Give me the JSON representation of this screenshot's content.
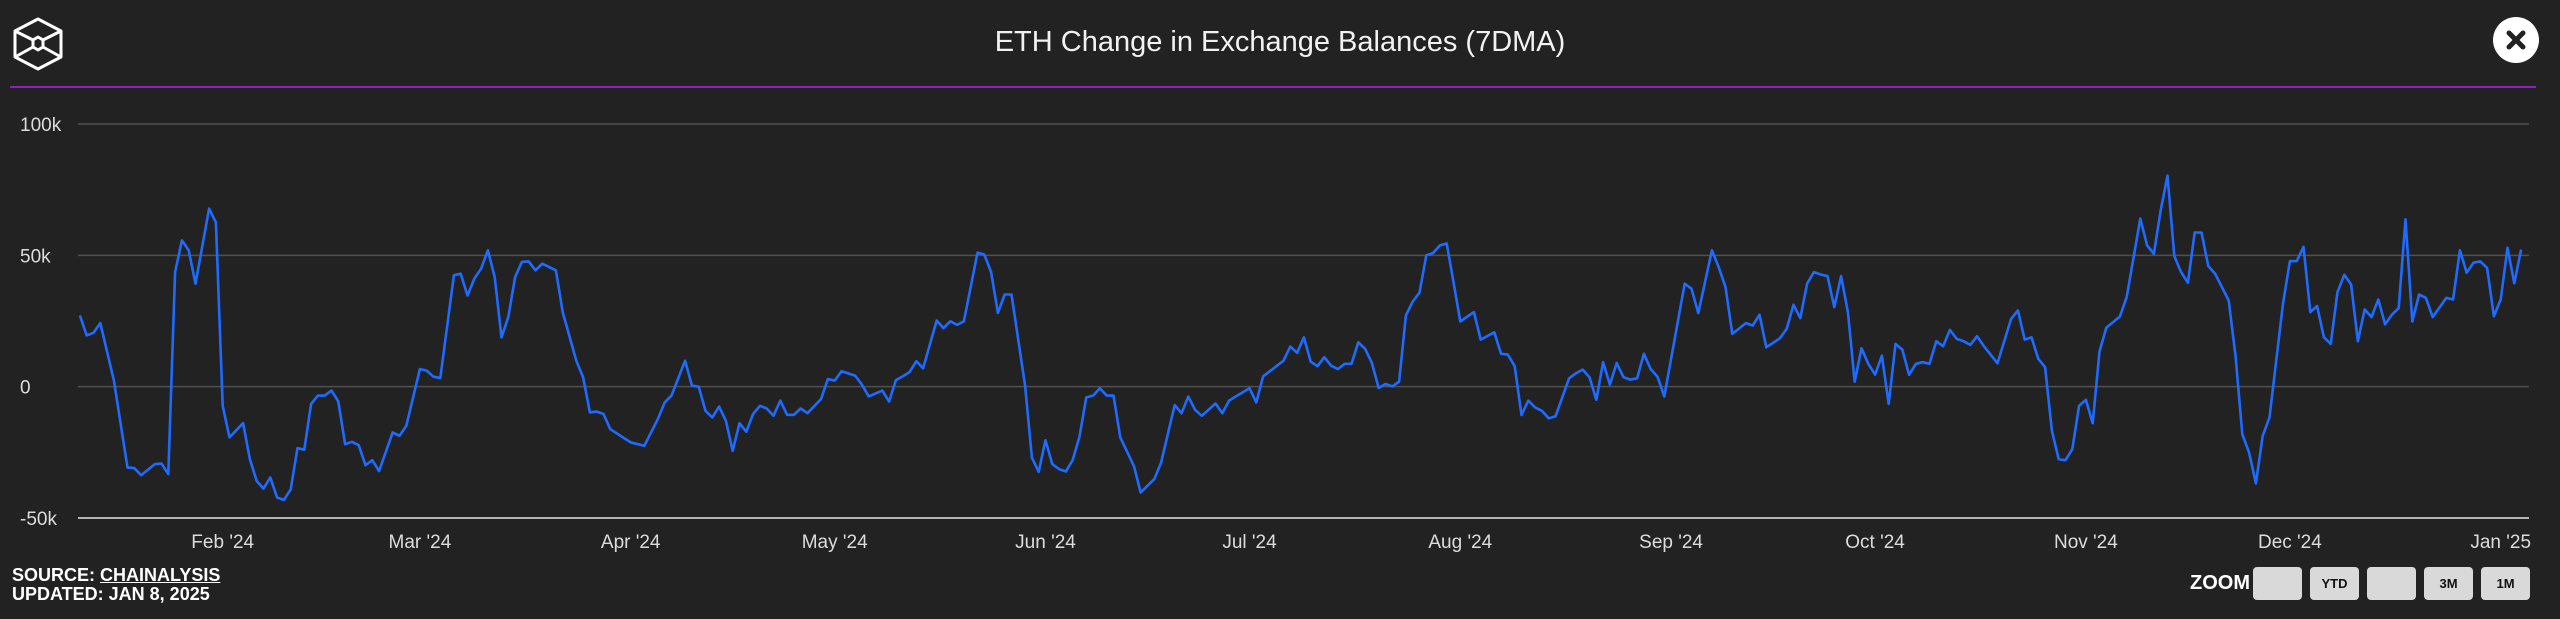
{
  "header": {
    "title": "ETH Change in Exchange Balances (7DMA)",
    "close_icon": "close-x-circle-icon",
    "logo_icon": "hexagon-cube-logo-icon",
    "accent_color": "#8b1fc4"
  },
  "footer": {
    "source_prefix": "SOURCE: ",
    "source_link": "CHAINALYSIS",
    "updated": "UPDATED: JAN 8, 2025"
  },
  "zoom": {
    "label": "ZOOM",
    "buttons": [
      "",
      "YTD",
      "",
      "3M",
      "1M"
    ]
  },
  "chart_data": {
    "type": "line",
    "title": "ETH Change in Exchange Balances (7DMA)",
    "line_color": "#1f6bff",
    "grid": true,
    "ylim": [
      -50000,
      100000
    ],
    "y_ticks": [
      {
        "value": 100000,
        "label": "100k"
      },
      {
        "value": 50000,
        "label": "50k"
      },
      {
        "value": 0,
        "label": "0"
      },
      {
        "value": -50000,
        "label": "-50k"
      }
    ],
    "x_ticks": [
      {
        "date": "2024-02-01",
        "label": "Feb '24"
      },
      {
        "date": "2024-03-01",
        "label": "Mar '24"
      },
      {
        "date": "2024-04-01",
        "label": "Apr '24"
      },
      {
        "date": "2024-05-01",
        "label": "May '24"
      },
      {
        "date": "2024-06-01",
        "label": "Jun '24"
      },
      {
        "date": "2024-07-01",
        "label": "Jul '24"
      },
      {
        "date": "2024-08-01",
        "label": "Aug '24"
      },
      {
        "date": "2024-09-01",
        "label": "Sep '24"
      },
      {
        "date": "2024-10-01",
        "label": "Oct '24"
      },
      {
        "date": "2024-11-01",
        "label": "Nov '24"
      },
      {
        "date": "2024-12-01",
        "label": "Dec '24"
      },
      {
        "date": "2025-01-01",
        "label": "Jan '25"
      }
    ],
    "points": [
      [
        "2024-01-11",
        27100
      ],
      [
        "2024-01-12",
        19500
      ],
      [
        "2024-01-13",
        20500
      ],
      [
        "2024-01-14",
        24200
      ],
      [
        "2024-01-16",
        2300
      ],
      [
        "2024-01-18",
        -30800
      ],
      [
        "2024-01-19",
        -31000
      ],
      [
        "2024-01-20",
        -33700
      ],
      [
        "2024-01-22",
        -29500
      ],
      [
        "2024-01-23",
        -29300
      ],
      [
        "2024-01-24",
        -33300
      ],
      [
        "2024-01-25",
        43600
      ],
      [
        "2024-01-26",
        55700
      ],
      [
        "2024-01-27",
        51900
      ],
      [
        "2024-01-28",
        39200
      ],
      [
        "2024-01-30",
        67800
      ],
      [
        "2024-01-31",
        62500
      ],
      [
        "2024-02-01",
        -7300
      ],
      [
        "2024-02-02",
        -19300
      ],
      [
        "2024-02-04",
        -13900
      ],
      [
        "2024-02-05",
        -27600
      ],
      [
        "2024-02-06",
        -35900
      ],
      [
        "2024-02-07",
        -38800
      ],
      [
        "2024-02-08",
        -34600
      ],
      [
        "2024-02-09",
        -42200
      ],
      [
        "2024-02-10",
        -43100
      ],
      [
        "2024-02-11",
        -39100
      ],
      [
        "2024-02-12",
        -23400
      ],
      [
        "2024-02-13",
        -24000
      ],
      [
        "2024-02-14",
        -6600
      ],
      [
        "2024-02-15",
        -3400
      ],
      [
        "2024-02-16",
        -3400
      ],
      [
        "2024-02-17",
        -1500
      ],
      [
        "2024-02-18",
        -5600
      ],
      [
        "2024-02-19",
        -21900
      ],
      [
        "2024-02-20",
        -21000
      ],
      [
        "2024-02-21",
        -22300
      ],
      [
        "2024-02-22",
        -29900
      ],
      [
        "2024-02-23",
        -28000
      ],
      [
        "2024-02-24",
        -32100
      ],
      [
        "2024-02-26",
        -17400
      ],
      [
        "2024-02-27",
        -18700
      ],
      [
        "2024-02-28",
        -14900
      ],
      [
        "2024-03-01",
        6700
      ],
      [
        "2024-03-02",
        6100
      ],
      [
        "2024-03-03",
        3800
      ],
      [
        "2024-03-04",
        3300
      ],
      [
        "2024-03-06",
        42400
      ],
      [
        "2024-03-07",
        43000
      ],
      [
        "2024-03-08",
        34700
      ],
      [
        "2024-03-09",
        41100
      ],
      [
        "2024-03-10",
        44900
      ],
      [
        "2024-03-11",
        51900
      ],
      [
        "2024-03-12",
        41700
      ],
      [
        "2024-03-13",
        18800
      ],
      [
        "2024-03-14",
        26500
      ],
      [
        "2024-03-15",
        41700
      ],
      [
        "2024-03-16",
        47500
      ],
      [
        "2024-03-17",
        47700
      ],
      [
        "2024-03-18",
        44300
      ],
      [
        "2024-03-19",
        46800
      ],
      [
        "2024-03-21",
        44300
      ],
      [
        "2024-03-22",
        28400
      ],
      [
        "2024-03-24",
        9900
      ],
      [
        "2024-03-25",
        3600
      ],
      [
        "2024-03-26",
        -9800
      ],
      [
        "2024-03-27",
        -9500
      ],
      [
        "2024-03-28",
        -10400
      ],
      [
        "2024-03-29",
        -16200
      ],
      [
        "2024-04-01",
        -21200
      ],
      [
        "2024-04-03",
        -22500
      ],
      [
        "2024-04-05",
        -12300
      ],
      [
        "2024-04-06",
        -6000
      ],
      [
        "2024-04-07",
        -3400
      ],
      [
        "2024-04-09",
        9900
      ],
      [
        "2024-04-10",
        400
      ],
      [
        "2024-04-11",
        0
      ],
      [
        "2024-04-12",
        -9200
      ],
      [
        "2024-04-13",
        -11700
      ],
      [
        "2024-04-14",
        -7600
      ],
      [
        "2024-04-15",
        -13000
      ],
      [
        "2024-04-16",
        -24400
      ],
      [
        "2024-04-17",
        -13900
      ],
      [
        "2024-04-18",
        -17200
      ],
      [
        "2024-04-19",
        -10400
      ],
      [
        "2024-04-20",
        -7300
      ],
      [
        "2024-04-21",
        -8300
      ],
      [
        "2024-04-22",
        -11100
      ],
      [
        "2024-04-23",
        -5300
      ],
      [
        "2024-04-24",
        -10700
      ],
      [
        "2024-04-25",
        -10700
      ],
      [
        "2024-04-26",
        -8300
      ],
      [
        "2024-04-27",
        -10100
      ],
      [
        "2024-04-29",
        -4700
      ],
      [
        "2024-04-30",
        2900
      ],
      [
        "2024-05-01",
        2300
      ],
      [
        "2024-05-02",
        5900
      ],
      [
        "2024-05-04",
        4200
      ],
      [
        "2024-05-05",
        800
      ],
      [
        "2024-05-06",
        -3700
      ],
      [
        "2024-05-08",
        -1500
      ],
      [
        "2024-05-09",
        -5700
      ],
      [
        "2024-05-10",
        2500
      ],
      [
        "2024-05-11",
        3900
      ],
      [
        "2024-05-12",
        5500
      ],
      [
        "2024-05-13",
        9700
      ],
      [
        "2024-05-14",
        7000
      ],
      [
        "2024-05-16",
        25200
      ],
      [
        "2024-05-17",
        22300
      ],
      [
        "2024-05-18",
        24900
      ],
      [
        "2024-05-19",
        23500
      ],
      [
        "2024-05-20",
        24900
      ],
      [
        "2024-05-22",
        51000
      ],
      [
        "2024-05-23",
        50300
      ],
      [
        "2024-05-24",
        43600
      ],
      [
        "2024-05-25",
        28100
      ],
      [
        "2024-05-26",
        35100
      ],
      [
        "2024-05-27",
        35100
      ],
      [
        "2024-05-29",
        400
      ],
      [
        "2024-05-30",
        -27000
      ],
      [
        "2024-05-31",
        -32400
      ],
      [
        "2024-06-01",
        -20400
      ],
      [
        "2024-06-02",
        -29500
      ],
      [
        "2024-06-03",
        -31400
      ],
      [
        "2024-06-04",
        -32300
      ],
      [
        "2024-06-05",
        -27900
      ],
      [
        "2024-06-06",
        -19000
      ],
      [
        "2024-06-07",
        -4100
      ],
      [
        "2024-06-08",
        -3400
      ],
      [
        "2024-06-09",
        -600
      ],
      [
        "2024-06-10",
        -3400
      ],
      [
        "2024-06-11",
        -3400
      ],
      [
        "2024-06-12",
        -19300
      ],
      [
        "2024-06-14",
        -30200
      ],
      [
        "2024-06-15",
        -40300
      ],
      [
        "2024-06-17",
        -35200
      ],
      [
        "2024-06-18",
        -28900
      ],
      [
        "2024-06-20",
        -7000
      ],
      [
        "2024-06-21",
        -10100
      ],
      [
        "2024-06-22",
        -3800
      ],
      [
        "2024-06-23",
        -8800
      ],
      [
        "2024-06-24",
        -11100
      ],
      [
        "2024-06-26",
        -6400
      ],
      [
        "2024-06-27",
        -10100
      ],
      [
        "2024-06-28",
        -5300
      ],
      [
        "2024-06-29",
        -3700
      ],
      [
        "2024-07-01",
        -600
      ],
      [
        "2024-07-02",
        -6000
      ],
      [
        "2024-07-03",
        3900
      ],
      [
        "2024-07-06",
        9900
      ],
      [
        "2024-07-07",
        15300
      ],
      [
        "2024-07-08",
        12900
      ],
      [
        "2024-07-09",
        18800
      ],
      [
        "2024-07-10",
        9500
      ],
      [
        "2024-07-11",
        7800
      ],
      [
        "2024-07-12",
        11200
      ],
      [
        "2024-07-13",
        8000
      ],
      [
        "2024-07-14",
        6700
      ],
      [
        "2024-07-15",
        8700
      ],
      [
        "2024-07-16",
        8700
      ],
      [
        "2024-07-17",
        16900
      ],
      [
        "2024-07-18",
        14400
      ],
      [
        "2024-07-19",
        9000
      ],
      [
        "2024-07-20",
        -500
      ],
      [
        "2024-07-21",
        1000
      ],
      [
        "2024-07-22",
        100
      ],
      [
        "2024-07-23",
        1900
      ],
      [
        "2024-07-24",
        27100
      ],
      [
        "2024-07-25",
        32400
      ],
      [
        "2024-07-26",
        35800
      ],
      [
        "2024-07-27",
        50000
      ],
      [
        "2024-07-28",
        50900
      ],
      [
        "2024-07-29",
        53800
      ],
      [
        "2024-07-30",
        54500
      ],
      [
        "2024-07-31",
        39800
      ],
      [
        "2024-08-01",
        24800
      ],
      [
        "2024-08-03",
        28400
      ],
      [
        "2024-08-04",
        17900
      ],
      [
        "2024-08-06",
        20700
      ],
      [
        "2024-08-07",
        12500
      ],
      [
        "2024-08-08",
        12200
      ],
      [
        "2024-08-09",
        7800
      ],
      [
        "2024-08-10",
        -10800
      ],
      [
        "2024-08-11",
        -5300
      ],
      [
        "2024-08-12",
        -7900
      ],
      [
        "2024-08-13",
        -9200
      ],
      [
        "2024-08-14",
        -12100
      ],
      [
        "2024-08-15",
        -11300
      ],
      [
        "2024-08-17",
        3200
      ],
      [
        "2024-08-18",
        5100
      ],
      [
        "2024-08-19",
        6500
      ],
      [
        "2024-08-20",
        3600
      ],
      [
        "2024-08-21",
        -5000
      ],
      [
        "2024-08-22",
        9300
      ],
      [
        "2024-08-23",
        800
      ],
      [
        "2024-08-24",
        9000
      ],
      [
        "2024-08-25",
        3600
      ],
      [
        "2024-08-26",
        2700
      ],
      [
        "2024-08-27",
        3200
      ],
      [
        "2024-08-28",
        12500
      ],
      [
        "2024-08-29",
        6700
      ],
      [
        "2024-08-30",
        3800
      ],
      [
        "2024-08-31",
        -3700
      ],
      [
        "2024-09-03",
        39200
      ],
      [
        "2024-09-04",
        37300
      ],
      [
        "2024-09-05",
        28000
      ],
      [
        "2024-09-07",
        51900
      ],
      [
        "2024-09-08",
        45500
      ],
      [
        "2024-09-09",
        37900
      ],
      [
        "2024-09-10",
        20100
      ],
      [
        "2024-09-12",
        24200
      ],
      [
        "2024-09-13",
        23300
      ],
      [
        "2024-09-14",
        27400
      ],
      [
        "2024-09-15",
        15000
      ],
      [
        "2024-09-17",
        18400
      ],
      [
        "2024-09-18",
        22000
      ],
      [
        "2024-09-19",
        31200
      ],
      [
        "2024-09-20",
        26100
      ],
      [
        "2024-09-21",
        39200
      ],
      [
        "2024-09-22",
        43600
      ],
      [
        "2024-09-23",
        42700
      ],
      [
        "2024-09-24",
        42100
      ],
      [
        "2024-09-25",
        30300
      ],
      [
        "2024-09-26",
        42100
      ],
      [
        "2024-09-27",
        28400
      ],
      [
        "2024-09-28",
        1900
      ],
      [
        "2024-09-29",
        14600
      ],
      [
        "2024-09-30",
        8700
      ],
      [
        "2024-10-01",
        4600
      ],
      [
        "2024-10-02",
        11800
      ],
      [
        "2024-10-03",
        -6600
      ],
      [
        "2024-10-04",
        16300
      ],
      [
        "2024-10-05",
        14100
      ],
      [
        "2024-10-06",
        4500
      ],
      [
        "2024-10-07",
        8700
      ],
      [
        "2024-10-08",
        9300
      ],
      [
        "2024-10-09",
        8700
      ],
      [
        "2024-10-10",
        17300
      ],
      [
        "2024-10-11",
        15400
      ],
      [
        "2024-10-12",
        21600
      ],
      [
        "2024-10-13",
        18200
      ],
      [
        "2024-10-14",
        17300
      ],
      [
        "2024-10-15",
        15900
      ],
      [
        "2024-10-16",
        19200
      ],
      [
        "2024-10-17",
        15400
      ],
      [
        "2024-10-19",
        8900
      ],
      [
        "2024-10-21",
        25800
      ],
      [
        "2024-10-22",
        29000
      ],
      [
        "2024-10-23",
        17900
      ],
      [
        "2024-10-24",
        18800
      ],
      [
        "2024-10-25",
        10600
      ],
      [
        "2024-10-26",
        7400
      ],
      [
        "2024-10-27",
        -16800
      ],
      [
        "2024-10-28",
        -27600
      ],
      [
        "2024-10-29",
        -28000
      ],
      [
        "2024-10-30",
        -23800
      ],
      [
        "2024-10-31",
        -7300
      ],
      [
        "2024-11-01",
        -5000
      ],
      [
        "2024-11-02",
        -13900
      ],
      [
        "2024-11-03",
        13400
      ],
      [
        "2024-11-04",
        22400
      ],
      [
        "2024-11-06",
        26700
      ],
      [
        "2024-11-07",
        34100
      ],
      [
        "2024-11-09",
        64000
      ],
      [
        "2024-11-10",
        53800
      ],
      [
        "2024-11-11",
        50600
      ],
      [
        "2024-11-12",
        67200
      ],
      [
        "2024-11-13",
        80300
      ],
      [
        "2024-11-14",
        49700
      ],
      [
        "2024-11-15",
        43600
      ],
      [
        "2024-11-16",
        39600
      ],
      [
        "2024-11-17",
        58700
      ],
      [
        "2024-11-18",
        58700
      ],
      [
        "2024-11-19",
        45900
      ],
      [
        "2024-11-20",
        43000
      ],
      [
        "2024-11-22",
        32800
      ],
      [
        "2024-11-23",
        11800
      ],
      [
        "2024-11-24",
        -18100
      ],
      [
        "2024-11-25",
        -25100
      ],
      [
        "2024-11-26",
        -36800
      ],
      [
        "2024-11-27",
        -18700
      ],
      [
        "2024-11-28",
        -11700
      ],
      [
        "2024-11-30",
        31900
      ],
      [
        "2024-12-01",
        47800
      ],
      [
        "2024-12-02",
        47800
      ],
      [
        "2024-12-03",
        53200
      ],
      [
        "2024-12-04",
        28400
      ],
      [
        "2024-12-05",
        30700
      ],
      [
        "2024-12-06",
        18800
      ],
      [
        "2024-12-07",
        16300
      ],
      [
        "2024-12-08",
        36000
      ],
      [
        "2024-12-09",
        42600
      ],
      [
        "2024-12-10",
        38900
      ],
      [
        "2024-12-11",
        17300
      ],
      [
        "2024-12-12",
        29400
      ],
      [
        "2024-12-13",
        26500
      ],
      [
        "2024-12-14",
        33200
      ],
      [
        "2024-12-15",
        23700
      ],
      [
        "2024-12-16",
        27400
      ],
      [
        "2024-12-17",
        29900
      ],
      [
        "2024-12-18",
        63700
      ],
      [
        "2024-12-19",
        24800
      ],
      [
        "2024-12-20",
        35100
      ],
      [
        "2024-12-21",
        33800
      ],
      [
        "2024-12-22",
        26500
      ],
      [
        "2024-12-24",
        33800
      ],
      [
        "2024-12-25",
        33200
      ],
      [
        "2024-12-26",
        51900
      ],
      [
        "2024-12-27",
        43400
      ],
      [
        "2024-12-28",
        47200
      ],
      [
        "2024-12-29",
        47700
      ],
      [
        "2024-12-30",
        45200
      ],
      [
        "2024-12-31",
        26800
      ],
      [
        "2025-01-01",
        33200
      ],
      [
        "2025-01-02",
        52900
      ],
      [
        "2025-01-03",
        39400
      ],
      [
        "2025-01-04",
        52200
      ]
    ]
  }
}
